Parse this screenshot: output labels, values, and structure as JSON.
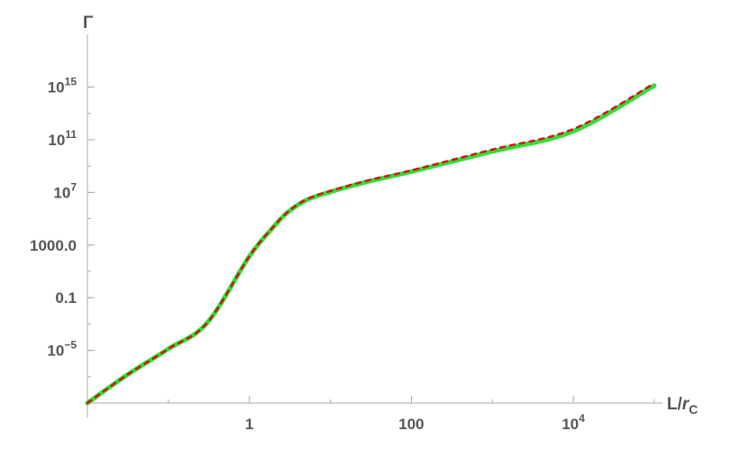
{
  "chart_data": {
    "type": "line",
    "title": "",
    "xlabel": {
      "main": "L/",
      "italic": "r",
      "sub": "C"
    },
    "ylabel": "Γ",
    "x_scale": "log",
    "y_scale": "log",
    "xlim": [
      0.01,
      100000
    ],
    "ylim": [
      1e-09,
      1e+16
    ],
    "x_ticks": [
      {
        "value": 1,
        "base": "1",
        "exp": ""
      },
      {
        "value": 100,
        "base": "100",
        "exp": ""
      },
      {
        "value": 10000,
        "base": "10",
        "exp": "4"
      }
    ],
    "y_ticks": [
      {
        "value": 1e-05,
        "base": "10",
        "exp": "−5"
      },
      {
        "value": 0.1,
        "base": "0.1",
        "exp": ""
      },
      {
        "value": 1000,
        "base": "1000.0",
        "exp": ""
      },
      {
        "value": 10000000.0,
        "base": "10",
        "exp": "7"
      },
      {
        "value": 100000000000.0,
        "base": "10",
        "exp": "11"
      },
      {
        "value": 1000000000000000.0,
        "base": "10",
        "exp": "15"
      }
    ],
    "grid": false,
    "legend": "none",
    "series": [
      {
        "color": "#33dd33",
        "style": "solid-thick",
        "x": [
          0.01,
          0.03,
          0.1,
          0.3,
          1,
          2,
          3,
          5,
          10,
          30,
          100,
          1000,
          10000,
          100000
        ],
        "y": [
          1e-09,
          1.2e-07,
          1.3e-05,
          0.0012,
          140.0,
          25000.0,
          320000.0,
          2500000.0,
          11000000.0,
          70000000.0,
          380000000.0,
          13000000000.0,
          450000000000.0,
          1300000000000000.0
        ]
      },
      {
        "color": "#cc1a1a",
        "style": "dashed",
        "x": [
          0.01,
          0.03,
          0.1,
          0.3,
          1,
          2,
          3,
          5,
          10,
          30,
          100,
          1000,
          10000,
          100000
        ],
        "y": [
          1e-09,
          1.2e-07,
          1.3e-05,
          0.0012,
          140.0,
          26000.0,
          340000.0,
          2800000.0,
          13000000.0,
          85000000.0,
          470000000.0,
          18000000000.0,
          650000000000.0,
          1900000000000000.0
        ]
      }
    ]
  }
}
